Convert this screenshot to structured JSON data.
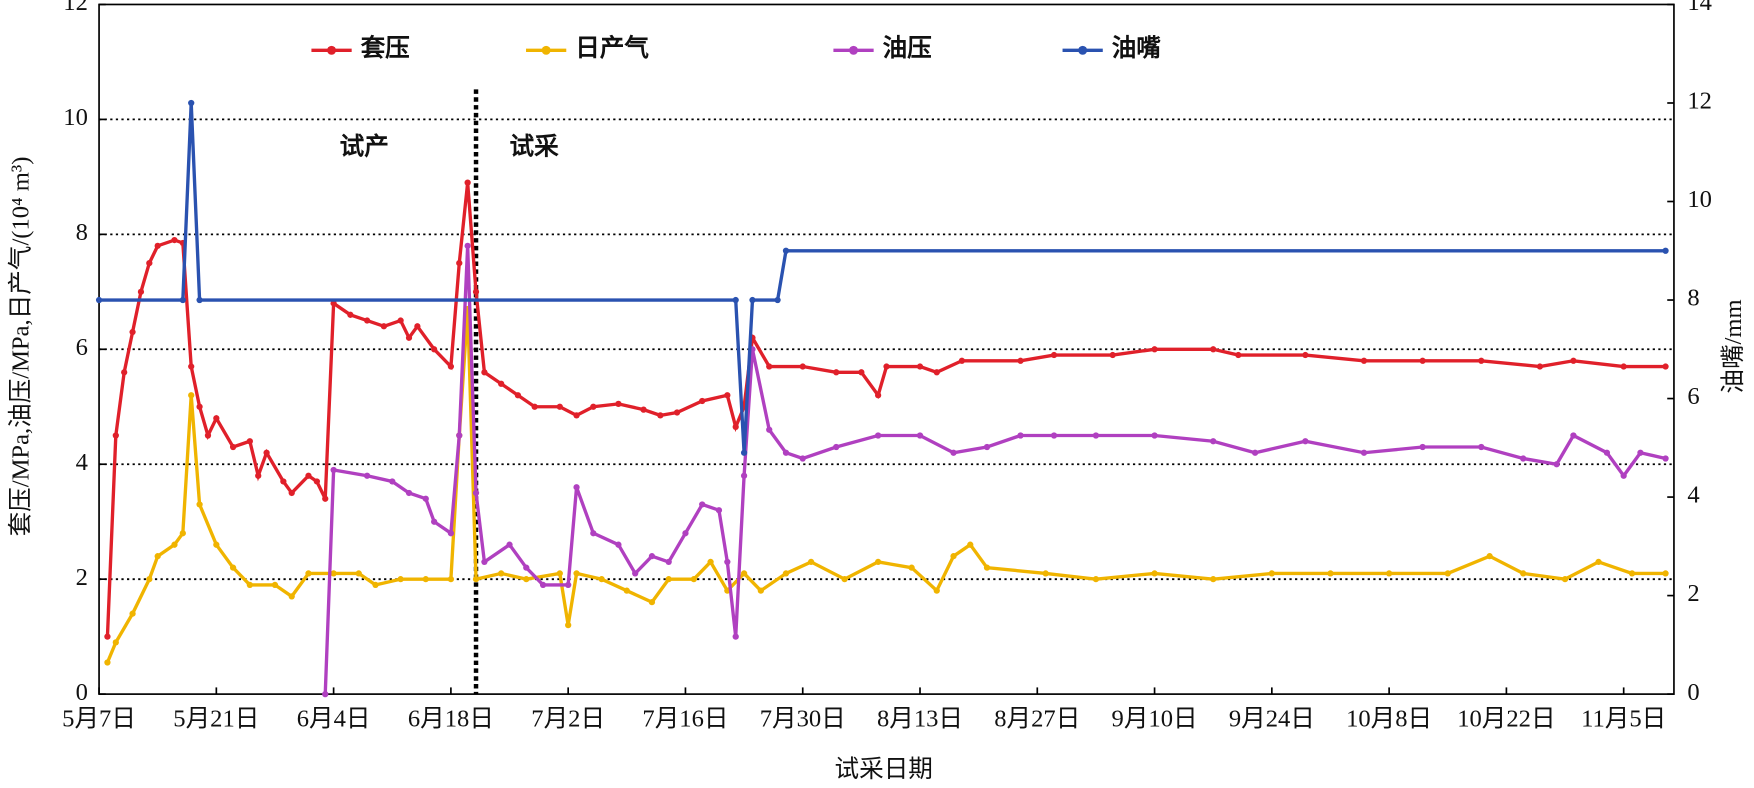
{
  "chart_data": {
    "type": "line",
    "x_label": "试采日期",
    "y_label": "套压/MPa,油压/MPa,日产气/(10⁴ m³)",
    "y2_label": "油嘴/mm",
    "xlim": [
      "5月7日",
      "11月11日"
    ],
    "xticks": [
      "5月7日",
      "5月21日",
      "6月4日",
      "6月18日",
      "7月2日",
      "7月16日",
      "7月30日",
      "8月13日",
      "8月27日",
      "9月10日",
      "9月24日",
      "10月8日",
      "10月22日",
      "11月5日"
    ],
    "ylim": [
      0,
      12
    ],
    "yticks": [
      0,
      2,
      4,
      6,
      8,
      10,
      12
    ],
    "y2lim": [
      0,
      14
    ],
    "y2ticks": [
      0,
      2,
      4,
      6,
      8,
      10,
      12,
      14
    ],
    "grid": true,
    "legend": "top",
    "phase_split": "6月21日",
    "annotations": [
      "试产",
      "试采"
    ],
    "series": [
      {
        "name": "套压",
        "color": "#e0202a",
        "x": [
          "5月8日",
          "5月9日",
          "5月10日",
          "5月11日",
          "5月12日",
          "5月13日",
          "5月14日",
          "5月16日",
          "5月17日",
          "5月18日",
          "5月19日",
          "5月20日",
          "5月21日",
          "5月23日",
          "5月25日",
          "5月26日",
          "5月27日",
          "5月29日",
          "5月30日",
          "6月1日",
          "6月2日",
          "6月3日",
          "6月4日",
          "6月6日",
          "6月8日",
          "6月10日",
          "6月12日",
          "6月13日",
          "6月14日",
          "6月16日",
          "6月18日",
          "6月19日",
          "6月20日",
          "6月21日",
          "6月22日",
          "6月24日",
          "6月26日",
          "6月28日",
          "7月1日",
          "7月3日",
          "7月5日",
          "7月8日",
          "7月11日",
          "7月13日",
          "7月15日",
          "7月18日",
          "7月21日",
          "7月22日",
          "7月23日",
          "7月24日",
          "7月26日",
          "7月30日",
          "8月3日",
          "8月6日",
          "8月8日",
          "8月9日",
          "8月13日",
          "8月15日",
          "8月18日",
          "8月25日",
          "8月29日",
          "9月5日",
          "9月10日",
          "9月17日",
          "9月20日",
          "9月28日",
          "10月5日",
          "10月12日",
          "10月19日",
          "10月26日",
          "10月30日",
          "11月5日",
          "11月10日"
        ],
        "values": [
          1.0,
          4.5,
          5.6,
          6.3,
          7.0,
          7.5,
          7.8,
          7.9,
          7.85,
          5.7,
          5.0,
          4.5,
          4.8,
          4.3,
          4.4,
          3.8,
          4.2,
          3.7,
          3.5,
          3.8,
          3.7,
          3.4,
          6.8,
          6.6,
          6.5,
          6.4,
          6.5,
          6.2,
          6.4,
          6.0,
          5.7,
          7.5,
          8.9,
          7.0,
          5.6,
          5.4,
          5.2,
          5.0,
          5.0,
          4.85,
          5.0,
          5.05,
          4.95,
          4.85,
          4.9,
          5.1,
          5.2,
          4.65,
          5.0,
          6.2,
          5.7,
          5.7,
          5.6,
          5.6,
          5.2,
          5.7,
          5.7,
          5.6,
          5.8,
          5.8,
          5.9,
          5.9,
          6.0,
          6.0,
          5.9,
          5.9,
          5.8,
          5.8,
          5.8,
          5.7,
          5.8,
          5.7,
          5.7
        ]
      },
      {
        "name": "日产气",
        "color": "#f0b400",
        "x": [
          "5月8日",
          "5月9日",
          "5月11日",
          "5月13日",
          "5月14日",
          "5月16日",
          "5月17日",
          "5月18日",
          "5月19日",
          "5月21日",
          "5月23日",
          "5月25日",
          "5月28日",
          "5月30日",
          "6月1日",
          "6月4日",
          "6月7日",
          "6月9日",
          "6月12日",
          "6月15日",
          "6月18日",
          "6月19日",
          "6月20日",
          "6月21日",
          "6月24日",
          "6月27日",
          "7月1日",
          "7月2日",
          "7月3日",
          "7月6日",
          "7月9日",
          "7月12日",
          "7月14日",
          "7月17日",
          "7月19日",
          "7月21日",
          "7月23日",
          "7月25日",
          "7月28日",
          "7月31日",
          "8月4日",
          "8月8日",
          "8月12日",
          "8月15日",
          "8月17日",
          "8月19日",
          "8月21日",
          "8月28日",
          "9月3日",
          "9月10日",
          "9月17日",
          "9月24日",
          "10月1日",
          "10月8日",
          "10月15日",
          "10月20日",
          "10月24日",
          "10月29日",
          "11月2日",
          "11月6日",
          "11月10日"
        ],
        "values": [
          0.55,
          0.9,
          1.4,
          2.0,
          2.4,
          2.6,
          2.8,
          5.2,
          3.3,
          2.6,
          2.2,
          1.9,
          1.9,
          1.7,
          2.1,
          2.1,
          2.1,
          1.9,
          2.0,
          2.0,
          2.0,
          4.5,
          6.7,
          2.0,
          2.1,
          2.0,
          2.1,
          1.2,
          2.1,
          2.0,
          1.8,
          1.6,
          2.0,
          2.0,
          2.3,
          1.8,
          2.1,
          1.8,
          2.1,
          2.3,
          2.0,
          2.3,
          2.2,
          1.8,
          2.4,
          2.6,
          2.2,
          2.1,
          2.0,
          2.1,
          2.0,
          2.1,
          2.1,
          2.1,
          2.1,
          2.4,
          2.1,
          2.0,
          2.3,
          2.1,
          2.1
        ]
      },
      {
        "name": "油压",
        "color": "#b040c0",
        "x": [
          "6月3日",
          "6月4日",
          "6月8日",
          "6月11日",
          "6月13日",
          "6月15日",
          "6月16日",
          "6月18日",
          "6月19日",
          "6月20日",
          "6月21日",
          "6月22日",
          "6月25日",
          "6月27日",
          "6月29日",
          "7月2日",
          "7月3日",
          "7月5日",
          "7月8日",
          "7月10日",
          "7月12日",
          "7月14日",
          "7月16日",
          "7月18日",
          "7月20日",
          "7月21日",
          "7月22日",
          "7月23日",
          "7月24日",
          "7月26日",
          "7月28日",
          "7月30日",
          "8月3日",
          "8月8日",
          "8月13日",
          "8月17日",
          "8月21日",
          "8月25日",
          "8月29日",
          "9月3日",
          "9月10日",
          "9月17日",
          "9月22日",
          "9月28日",
          "10月5日",
          "10月12日",
          "10月19日",
          "10月24日",
          "10月28日",
          "10月30日",
          "11月3日",
          "11月5日",
          "11月7日",
          "11月10日"
        ],
        "values": [
          0.0,
          3.9,
          3.8,
          3.7,
          3.5,
          3.4,
          3.0,
          2.8,
          4.5,
          7.8,
          3.5,
          2.3,
          2.6,
          2.2,
          1.9,
          1.9,
          3.6,
          2.8,
          2.6,
          2.1,
          2.4,
          2.3,
          2.8,
          3.3,
          3.2,
          2.3,
          1.0,
          3.8,
          6.0,
          4.6,
          4.2,
          4.1,
          4.3,
          4.5,
          4.5,
          4.2,
          4.3,
          4.5,
          4.5,
          4.5,
          4.5,
          4.4,
          4.2,
          4.4,
          4.2,
          4.3,
          4.3,
          4.1,
          4.0,
          4.5,
          4.2,
          3.8,
          4.2,
          4.1
        ]
      },
      {
        "name": "油嘴",
        "color": "#2a52b0",
        "axis": "y2",
        "x": [
          "5月7日",
          "5月17日",
          "5月18日",
          "5月19日",
          "7月22日",
          "7月23日",
          "7月24日",
          "7月27日",
          "7月28日",
          "11月10日"
        ],
        "values": [
          8,
          8,
          12,
          8,
          8,
          4.9,
          8,
          8,
          9,
          9
        ]
      }
    ]
  }
}
